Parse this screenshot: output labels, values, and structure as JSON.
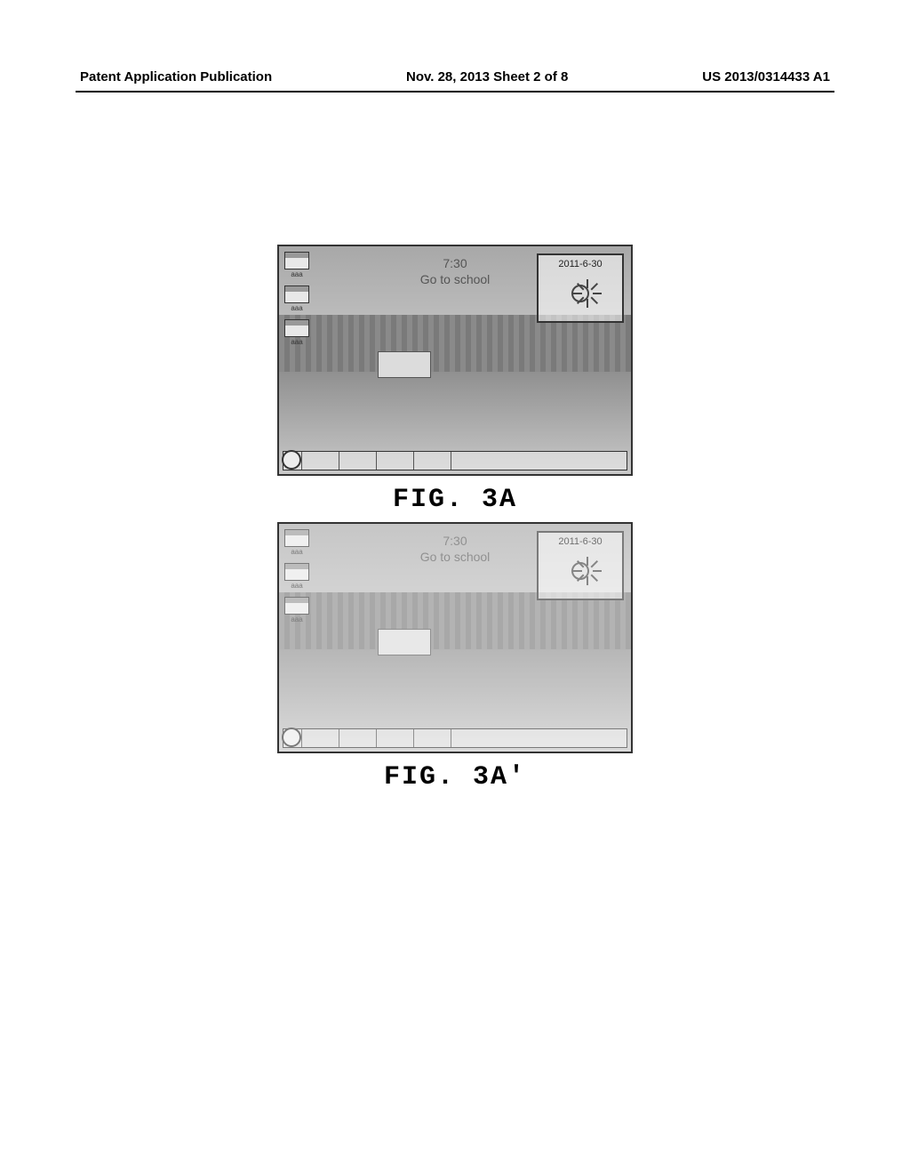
{
  "header": {
    "left": "Patent Application Publication",
    "center": "Nov. 28, 2013  Sheet 2 of 8",
    "right": "US 2013/0314433 A1"
  },
  "figures": [
    {
      "caption": "FIG. 3A",
      "faded": false,
      "icons": [
        {
          "label": "aaa"
        },
        {
          "label": "aaa"
        },
        {
          "label": "aaa"
        }
      ],
      "center": {
        "time": "7:30",
        "msg": "Go to school"
      },
      "date_widget": {
        "date": "2011-6-30"
      },
      "dock": {
        "cells": 5
      },
      "colors": {
        "border": "#333333",
        "text": "#555555",
        "widget_border": "#333333"
      }
    },
    {
      "caption": "FIG. 3A'",
      "faded": true,
      "icons": [
        {
          "label": "aaa"
        },
        {
          "label": "aaa"
        },
        {
          "label": "aaa"
        }
      ],
      "center": {
        "time": "7:30",
        "msg": "Go to school"
      },
      "date_widget": {
        "date": "2011-6-30"
      },
      "dock": {
        "cells": 5
      },
      "colors": {
        "border": "#333333",
        "text": "#555555",
        "widget_border": "#333333"
      }
    }
  ]
}
